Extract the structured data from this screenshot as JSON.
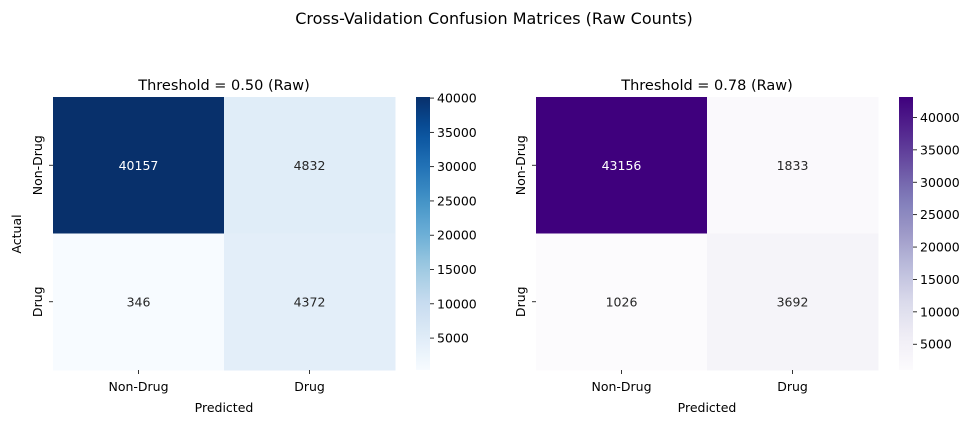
{
  "figure": {
    "suptitle": "Cross-Validation Confusion Matrices (Raw Counts)"
  },
  "chart_data": [
    {
      "type": "heatmap",
      "title": "Threshold = 0.50 (Raw)",
      "xlabel": "Predicted",
      "ylabel": "Actual",
      "x_categories": [
        "Non-Drug",
        "Drug"
      ],
      "y_categories": [
        "Non-Drug",
        "Drug"
      ],
      "values": [
        [
          40157,
          4832
        ],
        [
          346,
          4372
        ]
      ],
      "colormap": "Blues",
      "colorbar_ticks": [
        5000,
        10000,
        15000,
        20000,
        25000,
        30000,
        35000,
        40000
      ],
      "colorbar_range": [
        346,
        40157
      ],
      "colors": {
        "low": "#f7fbff",
        "high": "#08306b"
      }
    },
    {
      "type": "heatmap",
      "title": "Threshold = 0.78 (Raw)",
      "xlabel": "Predicted",
      "ylabel": "",
      "x_categories": [
        "Non-Drug",
        "Drug"
      ],
      "y_categories": [
        "Non-Drug",
        "Drug"
      ],
      "values": [
        [
          43156,
          1833
        ],
        [
          1026,
          3692
        ]
      ],
      "colormap": "Purples",
      "colorbar_ticks": [
        5000,
        10000,
        15000,
        20000,
        25000,
        30000,
        35000,
        40000
      ],
      "colorbar_range": [
        1026,
        43156
      ],
      "colors": {
        "low": "#fcfbfd",
        "high": "#3f007d"
      }
    }
  ]
}
